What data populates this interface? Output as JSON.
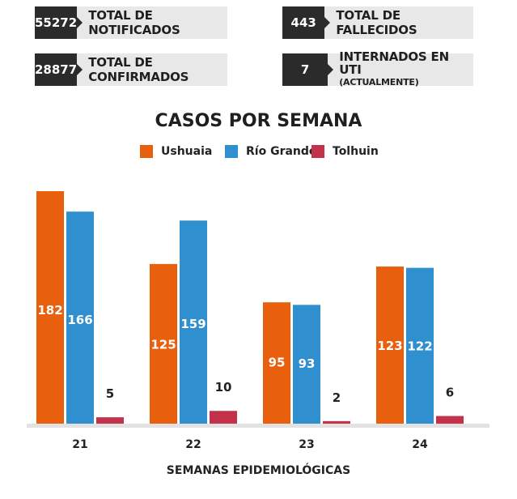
{
  "stats": [
    {
      "value": "55272",
      "label": "TOTAL DE NOTIFICADOS"
    },
    {
      "value": "443",
      "label": "TOTAL DE FALLECIDOS"
    },
    {
      "value": "28877",
      "label": "TOTAL DE CONFIRMADOS"
    },
    {
      "value": "7",
      "label": "INTERNADOS EN UTI",
      "sublabel": "(ACTUALMENTE)"
    }
  ],
  "chart_data": {
    "type": "bar",
    "title": "CASOS POR SEMANA",
    "xlabel": "SEMANAS EPIDEMIOLÓGICAS",
    "ylabel": "",
    "categories": [
      "21",
      "22",
      "23",
      "24"
    ],
    "series": [
      {
        "name": "Ushuaia",
        "color": "#e8600e",
        "values": [
          182,
          125,
          95,
          123
        ]
      },
      {
        "name": "Río Grande",
        "color": "#2f8fcf",
        "values": [
          166,
          159,
          93,
          122
        ]
      },
      {
        "name": "Tolhuin",
        "color": "#c4314b",
        "values": [
          5,
          10,
          2,
          6
        ]
      }
    ],
    "ylim": [
      0,
      182
    ],
    "grid": false,
    "legend": "top-center"
  }
}
